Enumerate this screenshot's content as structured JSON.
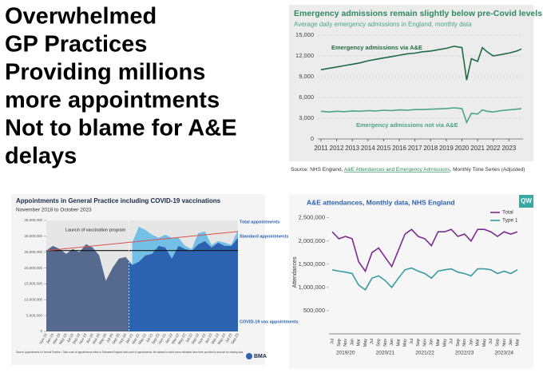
{
  "headline": [
    "Overwhelmed",
    "GP Practices",
    "Providing millions",
    "more appointments",
    "Not to blame for A&E",
    "delays"
  ],
  "chart_data": [
    {
      "type": "line",
      "title": "Emergency admissions remain slightly below pre-Covid levels",
      "subtitle": "Average daily emergency admissions in England, monthly data",
      "source": [
        "Source: NHS England, ",
        "A&E Attendances and Emergency Admissions",
        ", Monthly Time Series (Adjusted)"
      ],
      "x": [
        2011,
        2011.5,
        2012,
        2012.5,
        2013,
        2013.5,
        2014,
        2014.5,
        2015,
        2015.5,
        2016,
        2016.5,
        2017,
        2017.5,
        2018,
        2018.5,
        2019,
        2019.5,
        2020,
        2020.3,
        2020.6,
        2021,
        2021.3,
        2021.6,
        2022,
        2022.5,
        2023,
        2023.5,
        2023.8
      ],
      "series": [
        {
          "name": "Emergency admissions via A&E",
          "color": "#1f6b45",
          "values": [
            10000,
            10200,
            10400,
            10600,
            10800,
            11000,
            11300,
            11500,
            11700,
            11900,
            12100,
            12300,
            12400,
            12600,
            12700,
            12900,
            13100,
            13400,
            13200,
            8500,
            11600,
            11200,
            13200,
            12600,
            12000,
            12200,
            12400,
            12700,
            13000
          ]
        },
        {
          "name": "Emergency admissions not via A&E",
          "color": "#4aa58a",
          "values": [
            4000,
            3900,
            4000,
            3950,
            4050,
            4000,
            4100,
            4050,
            4150,
            4100,
            4200,
            4150,
            4250,
            4250,
            4300,
            4350,
            4400,
            4500,
            4400,
            2400,
            3700,
            3600,
            4200,
            4000,
            3900,
            4100,
            4200,
            4300,
            4400
          ]
        }
      ],
      "xlim": [
        2010.8,
        2023.9
      ],
      "xticks": [
        2011,
        2012,
        2013,
        2014,
        2015,
        2016,
        2017,
        2018,
        2019,
        2020,
        2021,
        2022,
        2023
      ],
      "ylim": [
        0,
        15000
      ],
      "yticks": [
        0,
        {
          "value": 3000,
          "label": "3,000"
        },
        {
          "value": 6000,
          "label": "6,000"
        },
        {
          "value": 9000,
          "label": "9,000"
        },
        {
          "value": 12000,
          "label": "12,000"
        },
        {
          "value": 15000,
          "label": "15,000"
        }
      ],
      "grid": true
    },
    {
      "type": "area",
      "title": "Appointments in General Practice including COVID-19 vaccinations",
      "subtitle": "November 2018 to October 2023",
      "annotation": "Launch of vaccination program",
      "total_label": "Total appointments",
      "footnote": "Source: Appointments in General Practice • Total count of appointments refers to Estimated England total count of appointments: the dataset in which some estimates have been provided to account for missing data.",
      "logo": "BMA",
      "categories": [
        "Nov-18",
        "Jan-19",
        "Mar-19",
        "May-19",
        "Jul-19",
        "Sep-19",
        "Nov-19",
        "Jan-20",
        "Mar-20",
        "May-20",
        "Jul-20",
        "Sep-20",
        "Nov-20",
        "Jan-21",
        "Mar-21",
        "May-21",
        "Jul-21",
        "Sep-21",
        "Nov-21",
        "Jan-22",
        "Mar-22",
        "May-22",
        "Jul-22",
        "Sep-22",
        "Nov-22",
        "Jan-23",
        "Mar-23",
        "May-23",
        "Jul-23",
        "Sep-23"
      ],
      "series": [
        {
          "name": "Standard appointments",
          "color": "#2b63b0",
          "values": [
            25500000,
            27000000,
            26000000,
            24500000,
            26000000,
            25000000,
            27500000,
            26500000,
            24000000,
            16000000,
            20000000,
            23000000,
            23500000,
            21000000,
            22000000,
            24000000,
            24500000,
            27000000,
            26500000,
            23000000,
            27000000,
            26000000,
            25500000,
            27500000,
            28500000,
            26500000,
            28000000,
            27000000,
            27000000,
            29500000
          ]
        },
        {
          "name": "COVID-19 vax appointments",
          "color": "#5fb7e5",
          "values": [
            null,
            null,
            null,
            null,
            null,
            null,
            null,
            null,
            null,
            null,
            null,
            null,
            null,
            7000000,
            11000000,
            8000000,
            6000000,
            2500000,
            4000000,
            6500000,
            2500000,
            1000000,
            500000,
            3500000,
            3000000,
            800000,
            500000,
            1000000,
            300000,
            2500000
          ]
        }
      ],
      "baseline": 25500000,
      "trend_line": [
        25500000,
        31500000
      ],
      "ylim": [
        0,
        35000000
      ],
      "yticks": [
        0,
        {
          "value": 5000000,
          "label": "5,000,000"
        },
        {
          "value": 10000000,
          "label": "10,000,000"
        },
        {
          "value": 15000000,
          "label": "15,000,000"
        },
        {
          "value": 20000000,
          "label": "20,000,000"
        },
        {
          "value": 25000000,
          "label": "25,000,000"
        },
        {
          "value": 30000000,
          "label": "30,000,000"
        },
        {
          "value": 35000000,
          "label": "35,000,000"
        }
      ]
    },
    {
      "type": "line",
      "title": "A&E attendances, Monthly data, NHS England",
      "ylabel": "Attendances",
      "logo": "QW",
      "categories": [
        "Jul",
        "Sep",
        "Nov",
        "Jan",
        "Mar",
        "May",
        "Jul",
        "Sep",
        "Nov",
        "Jan",
        "Mar",
        "May",
        "Jul",
        "Sep",
        "Nov",
        "Jan",
        "Mar",
        "May",
        "Jul",
        "Sep",
        "Nov",
        "Jan",
        "Mar",
        "May",
        "Jul",
        "Sep",
        "Nov",
        "Jan",
        "Mar"
      ],
      "groups": [
        "2019/20",
        "2020/21",
        "2021/22",
        "2022/23",
        "2023/24"
      ],
      "series": [
        {
          "name": "Total",
          "color": "#7b2d8e",
          "values": [
            2200000,
            2050000,
            2100000,
            2050000,
            1550000,
            1350000,
            1750000,
            1850000,
            1650000,
            1450000,
            1800000,
            2150000,
            2250000,
            2100000,
            2050000,
            1900000,
            2200000,
            2200000,
            2250000,
            2100000,
            2150000,
            2000000,
            2250000,
            2250000,
            2200000,
            2100000,
            2200000,
            2150000,
            2200000
          ]
        },
        {
          "name": "Type 1",
          "color": "#3a9aa0",
          "values": [
            1380000,
            1350000,
            1330000,
            1300000,
            1050000,
            950000,
            1200000,
            1250000,
            1150000,
            1000000,
            1200000,
            1380000,
            1420000,
            1350000,
            1300000,
            1200000,
            1350000,
            1380000,
            1400000,
            1330000,
            1300000,
            1250000,
            1400000,
            1400000,
            1380000,
            1300000,
            1350000,
            1300000,
            1380000
          ]
        }
      ],
      "ylim": [
        0,
        2650000
      ],
      "yticks": [
        {
          "value": 500000,
          "label": "500,000"
        },
        {
          "value": 1000000,
          "label": "1,000,000"
        },
        {
          "value": 1500000,
          "label": "1,500,000"
        },
        {
          "value": 2000000,
          "label": "2,000,000"
        },
        {
          "value": 2500000,
          "label": "2,500,000"
        }
      ],
      "legend": "top-right"
    }
  ]
}
